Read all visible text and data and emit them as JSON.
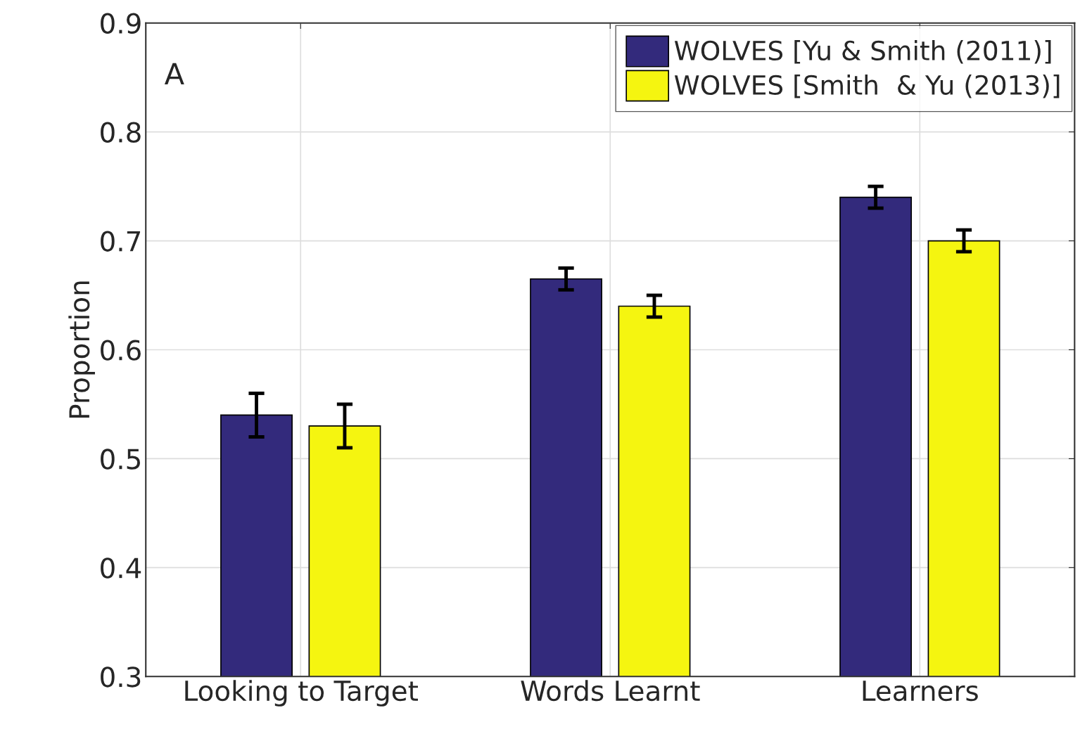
{
  "chart_data": {
    "type": "bar",
    "ylabel": "Proportion",
    "categories": [
      "Looking to Target",
      "Words Learnt",
      "Learners"
    ],
    "series": [
      {
        "name": "WOLVES [Yu & Smith (2011)]",
        "color": "#332a7c",
        "values": [
          0.54,
          0.665,
          0.74
        ],
        "errors": [
          0.02,
          0.01,
          0.01
        ]
      },
      {
        "name": "WOLVES [Smith  & Yu (2013)]",
        "color": "#f5f510",
        "values": [
          0.53,
          0.64,
          0.7
        ],
        "errors": [
          0.02,
          0.01,
          0.01
        ]
      }
    ],
    "ylim": [
      0.3,
      0.9
    ],
    "yticks": [
      0.3,
      0.4,
      0.5,
      0.6,
      0.7,
      0.8,
      0.9
    ],
    "grid": true,
    "legend": "top right",
    "annotations": [
      "A"
    ]
  }
}
